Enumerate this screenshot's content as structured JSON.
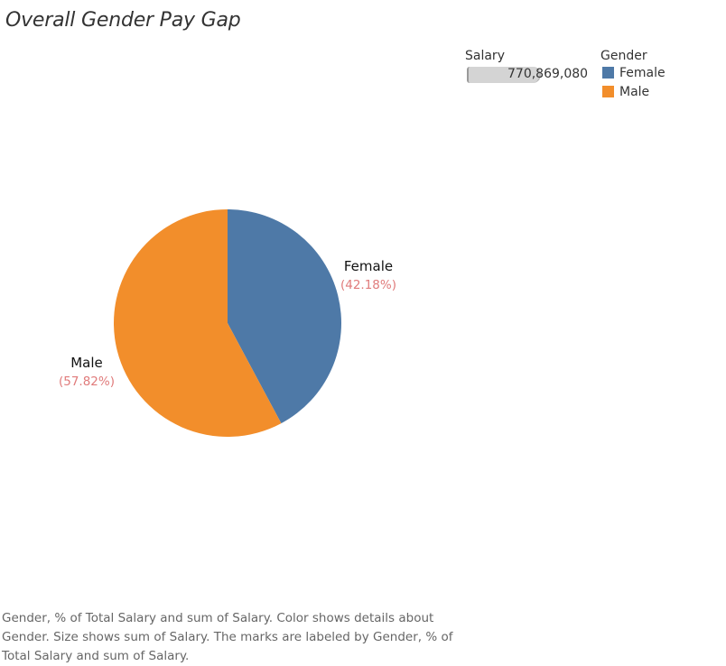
{
  "title": "Overall Gender Pay Gap",
  "legends": {
    "size": {
      "heading": "Salary",
      "value": "770,869,080"
    },
    "color": {
      "heading": "Gender",
      "items": [
        {
          "label": "Female",
          "color": "#4e79a7"
        },
        {
          "label": "Male",
          "color": "#f28e2b"
        }
      ]
    }
  },
  "chart_data": {
    "type": "pie",
    "title": "Overall Gender Pay Gap",
    "slices": [
      {
        "label": "Female",
        "value": 42.18,
        "value_label": "(42.18%)",
        "color": "#4e79a7"
      },
      {
        "label": "Male",
        "value": 57.82,
        "value_label": "(57.82%)",
        "color": "#f28e2b"
      }
    ],
    "total": "770,869,080",
    "label_color": "#e07b7b",
    "legend": "top-right"
  },
  "caption": "Gender, % of Total Salary and sum of Salary.  Color shows details about Gender.  Size shows sum of Salary.  The marks are labeled by Gender, % of Total Salary and sum of Salary."
}
